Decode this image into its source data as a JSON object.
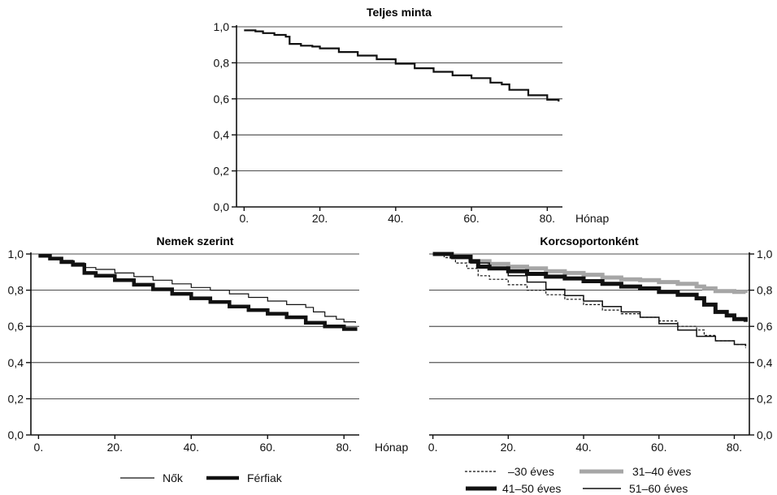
{
  "chart_data": [
    {
      "type": "line",
      "step": true,
      "title": "Teljes minta",
      "xlabel": "Hónap",
      "ylabel": "",
      "xlim": [
        -2,
        84
      ],
      "ylim": [
        0,
        1
      ],
      "xticks": [
        0,
        20,
        40,
        60,
        80
      ],
      "xtick_labels": [
        "0.",
        "20.",
        "40.",
        "60.",
        "80."
      ],
      "yticks": [
        0,
        0.2,
        0.4,
        0.6,
        0.8,
        1.0
      ],
      "ytick_labels": [
        "0,0",
        "0,2",
        "0,4",
        "0,6",
        "0,8",
        "1,0"
      ],
      "y_axis_side": "left",
      "grid": "horizontal",
      "legend": null,
      "series": [
        {
          "x": [
            0,
            3,
            5,
            8,
            11,
            12,
            15,
            18,
            20,
            25,
            30,
            35,
            40,
            45,
            50,
            55,
            60,
            65,
            68,
            70,
            75,
            80,
            83
          ],
          "y": [
            0.98,
            0.975,
            0.965,
            0.955,
            0.945,
            0.905,
            0.895,
            0.89,
            0.88,
            0.86,
            0.84,
            0.82,
            0.795,
            0.77,
            0.75,
            0.73,
            0.715,
            0.69,
            0.68,
            0.65,
            0.62,
            0.595,
            0.585
          ],
          "color": "#111111",
          "width": 2.2,
          "dash": ""
        }
      ]
    },
    {
      "type": "line",
      "step": true,
      "title": "Nemek szerint",
      "xlabel": "Hónap",
      "ylabel": "",
      "xlim": [
        -2,
        84
      ],
      "ylim": [
        0,
        1
      ],
      "xticks": [
        0,
        20,
        40,
        60,
        80
      ],
      "xtick_labels": [
        "0.",
        "20.",
        "40.",
        "60.",
        "80."
      ],
      "yticks": [
        0,
        0.2,
        0.4,
        0.6,
        0.8,
        1.0
      ],
      "ytick_labels": [
        "0,0",
        "0,2",
        "0,4",
        "0,6",
        "0,8",
        "1,0"
      ],
      "y_axis_side": "left",
      "grid": "horizontal",
      "legend": "bottom",
      "series": [
        {
          "name": "Nők",
          "x": [
            0,
            3,
            6,
            9,
            12,
            15,
            20,
            25,
            30,
            35,
            40,
            45,
            50,
            55,
            60,
            65,
            70,
            72,
            75,
            78,
            80,
            83
          ],
          "y": [
            0.99,
            0.98,
            0.965,
            0.95,
            0.925,
            0.915,
            0.895,
            0.875,
            0.855,
            0.835,
            0.815,
            0.8,
            0.78,
            0.76,
            0.74,
            0.72,
            0.705,
            0.68,
            0.655,
            0.64,
            0.625,
            0.62
          ],
          "color": "#111111",
          "width": 1.2,
          "dash": ""
        },
        {
          "name": "Férfiak",
          "x": [
            0,
            3,
            6,
            9,
            12,
            15,
            20,
            25,
            30,
            35,
            40,
            45,
            50,
            55,
            60,
            65,
            70,
            75,
            80,
            83
          ],
          "y": [
            0.99,
            0.975,
            0.955,
            0.94,
            0.895,
            0.88,
            0.855,
            0.83,
            0.805,
            0.78,
            0.755,
            0.735,
            0.71,
            0.69,
            0.67,
            0.65,
            0.62,
            0.6,
            0.585,
            0.575
          ],
          "color": "#111111",
          "width": 4.5,
          "dash": ""
        }
      ]
    },
    {
      "type": "line",
      "step": true,
      "title": "Korcsoportonként",
      "xlabel": "Hónap",
      "ylabel": "",
      "xlim": [
        -1,
        84
      ],
      "ylim": [
        0,
        1
      ],
      "xticks": [
        0,
        20,
        40,
        60,
        80
      ],
      "xtick_labels": [
        "0.",
        "20.",
        "40.",
        "60.",
        "80."
      ],
      "yticks": [
        0,
        0.2,
        0.4,
        0.6,
        0.8,
        1.0
      ],
      "ytick_labels": [
        "0,0",
        "0,2",
        "0,4",
        "0,6",
        "0,8",
        "1,0"
      ],
      "y_axis_side": "right",
      "grid": "horizontal",
      "legend": "bottom",
      "series": [
        {
          "name": "–30 éves",
          "x": [
            0,
            3,
            6,
            9,
            12,
            15,
            20,
            25,
            30,
            35,
            40,
            45,
            50,
            55,
            60,
            65,
            70,
            72,
            75,
            80,
            83
          ],
          "y": [
            1.0,
            0.98,
            0.95,
            0.92,
            0.88,
            0.86,
            0.83,
            0.8,
            0.775,
            0.75,
            0.72,
            0.69,
            0.67,
            0.65,
            0.63,
            0.6,
            0.58,
            0.55,
            0.52,
            0.5,
            0.48
          ],
          "color": "#111111",
          "width": 1.2,
          "dash": "3,2"
        },
        {
          "name": "31–40 éves",
          "x": [
            0,
            5,
            10,
            15,
            20,
            25,
            30,
            35,
            40,
            45,
            50,
            55,
            60,
            65,
            70,
            72,
            75,
            80,
            83
          ],
          "y": [
            1.0,
            0.99,
            0.96,
            0.945,
            0.93,
            0.92,
            0.905,
            0.895,
            0.885,
            0.87,
            0.86,
            0.855,
            0.845,
            0.835,
            0.82,
            0.81,
            0.795,
            0.79,
            0.785
          ],
          "color": "#a6a6a6",
          "width": 5,
          "dash": ""
        },
        {
          "name": "41–50 éves",
          "x": [
            0,
            5,
            10,
            12,
            15,
            20,
            25,
            30,
            35,
            40,
            45,
            50,
            55,
            60,
            65,
            70,
            72,
            75,
            78,
            80,
            83
          ],
          "y": [
            1.0,
            0.985,
            0.96,
            0.93,
            0.92,
            0.905,
            0.89,
            0.875,
            0.865,
            0.85,
            0.835,
            0.82,
            0.81,
            0.79,
            0.775,
            0.755,
            0.72,
            0.68,
            0.66,
            0.64,
            0.625
          ],
          "color": "#111111",
          "width": 5,
          "dash": ""
        },
        {
          "name": "51–60 éves",
          "x": [
            0,
            5,
            10,
            15,
            20,
            25,
            30,
            35,
            40,
            45,
            50,
            55,
            60,
            65,
            70,
            75,
            80,
            83
          ],
          "y": [
            1.0,
            0.975,
            0.95,
            0.915,
            0.88,
            0.845,
            0.805,
            0.77,
            0.74,
            0.71,
            0.68,
            0.65,
            0.615,
            0.58,
            0.545,
            0.52,
            0.5,
            0.49
          ],
          "color": "#111111",
          "width": 1.5,
          "dash": ""
        }
      ]
    }
  ]
}
